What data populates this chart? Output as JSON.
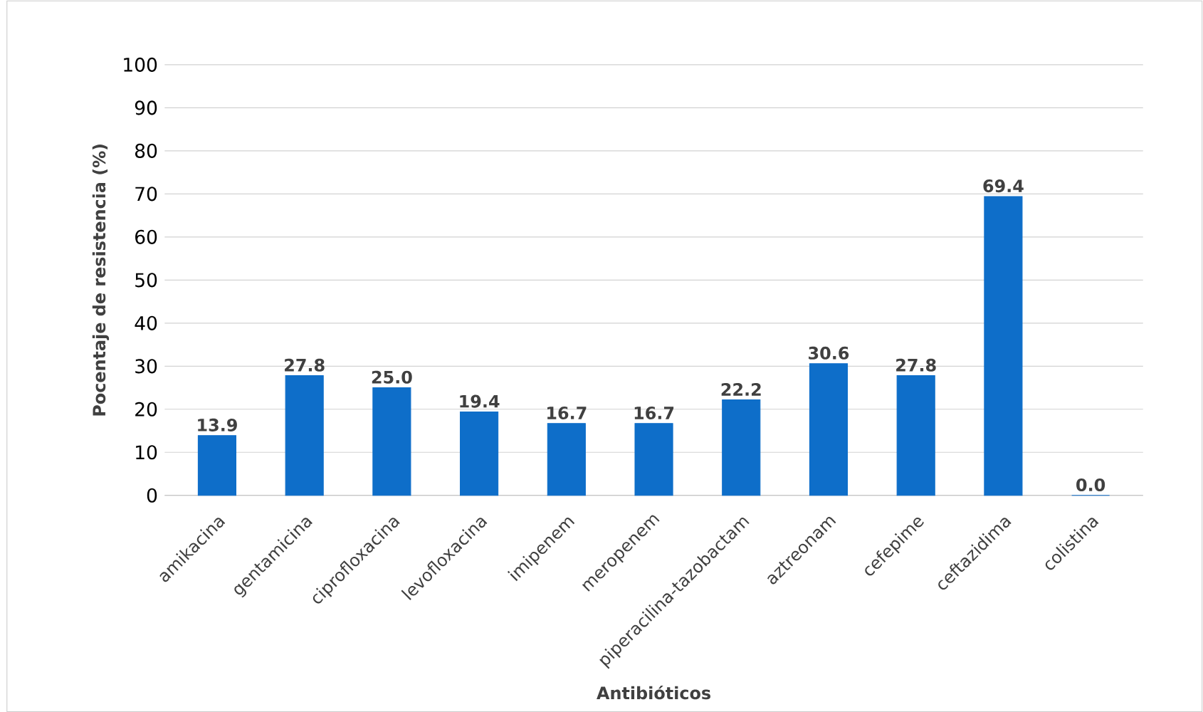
{
  "chart_data": {
    "type": "bar",
    "xlabel": "Antibióticos",
    "ylabel": "Pocentaje de resistencia (%)",
    "categories": [
      "amikacina",
      "gentamicina",
      "ciprofloxacina",
      "levofloxacina",
      "imipenem",
      "meropenem",
      "piperacilina-tazobactam",
      "aztreonam",
      "cefepime",
      "ceftazidima",
      "colistina"
    ],
    "values": [
      13.9,
      27.8,
      25.0,
      19.4,
      16.7,
      16.7,
      22.2,
      30.6,
      27.8,
      69.4,
      0.0
    ],
    "color": "#0e6ec9",
    "value_labels": [
      "13.9",
      "27.8",
      "25.0",
      "19.4",
      "16.7",
      "16.7",
      "22.2",
      "30.6",
      "27.8",
      "69.4",
      "0.0"
    ],
    "grid": "y",
    "ylim": [
      0,
      100
    ],
    "yticks": [
      0,
      10,
      20,
      30,
      40,
      50,
      60,
      70,
      80,
      90,
      100
    ]
  }
}
